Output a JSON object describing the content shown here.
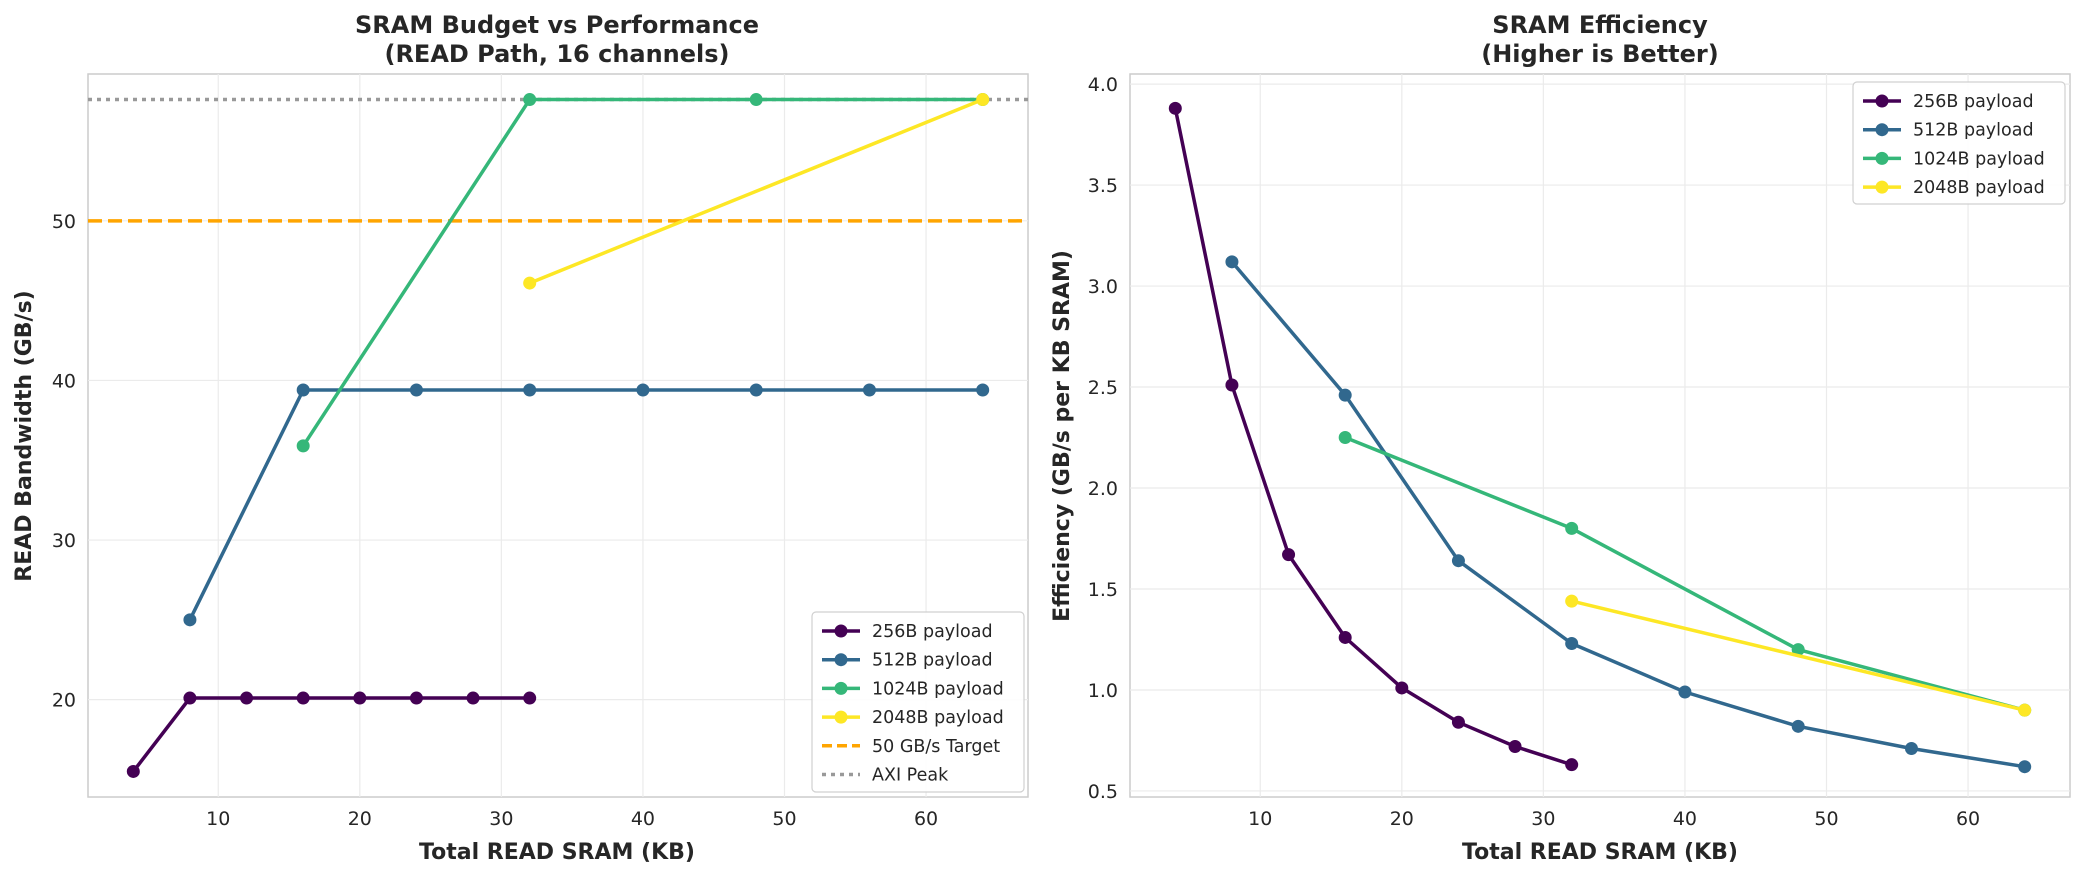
{
  "chart_data": [
    {
      "type": "line",
      "title": [
        "SRAM Budget vs Performance",
        "(READ Path, 16 channels)"
      ],
      "xlabel": "Total READ SRAM (KB)",
      "ylabel": "READ Bandwidth (GB/s)",
      "xlim": [
        0.8,
        67.2
      ],
      "ylim": [
        13.9,
        59.2
      ],
      "xticks": [
        10,
        20,
        30,
        40,
        50,
        60
      ],
      "yticks": [
        20,
        30,
        40,
        50
      ],
      "grid": true,
      "legend_position": "bottom-right",
      "series": [
        {
          "name": "256B payload",
          "color": "#440154",
          "x": [
            4,
            8,
            12,
            16,
            20,
            24,
            28,
            32
          ],
          "y": [
            15.5,
            20.1,
            20.1,
            20.1,
            20.1,
            20.1,
            20.1,
            20.1
          ]
        },
        {
          "name": "512B payload",
          "color": "#31688e",
          "x": [
            8,
            16,
            24,
            32,
            40,
            48,
            56,
            64
          ],
          "y": [
            25.0,
            39.4,
            39.4,
            39.4,
            39.4,
            39.4,
            39.4,
            39.4
          ]
        },
        {
          "name": "1024B payload",
          "color": "#35b779",
          "x": [
            16,
            32,
            48,
            64
          ],
          "y": [
            35.9,
            57.6,
            57.6,
            57.6
          ]
        },
        {
          "name": "2048B payload",
          "color": "#fde725",
          "x": [
            32,
            64
          ],
          "y": [
            46.1,
            57.6
          ]
        }
      ],
      "reference_lines": [
        {
          "name": "50 GB/s Target",
          "y": 50,
          "color": "#ffa500",
          "style": "dashed"
        },
        {
          "name": "AXI Peak",
          "y": 57.6,
          "color": "#999999",
          "style": "dotted"
        }
      ]
    },
    {
      "type": "line",
      "title": [
        "SRAM Efficiency",
        "(Higher is Better)"
      ],
      "xlabel": "Total READ SRAM (KB)",
      "ylabel": "Efficiency (GB/s per KB SRAM)",
      "xlim": [
        0.8,
        67.2
      ],
      "ylim": [
        0.47,
        4.05
      ],
      "xticks": [
        10,
        20,
        30,
        40,
        50,
        60
      ],
      "yticks": [
        0.5,
        1.0,
        1.5,
        2.0,
        2.5,
        3.0,
        3.5,
        4.0
      ],
      "ytick_labels": [
        "0.5",
        "1.0",
        "1.5",
        "2.0",
        "2.5",
        "3.0",
        "3.5",
        "4.0"
      ],
      "grid": true,
      "legend_position": "top-right",
      "series": [
        {
          "name": "256B payload",
          "color": "#440154",
          "x": [
            4,
            8,
            12,
            16,
            20,
            24,
            28,
            32
          ],
          "y": [
            3.88,
            2.51,
            1.67,
            1.26,
            1.01,
            0.84,
            0.72,
            0.63
          ]
        },
        {
          "name": "512B payload",
          "color": "#31688e",
          "x": [
            8,
            16,
            24,
            32,
            40,
            48,
            56,
            64
          ],
          "y": [
            3.12,
            2.46,
            1.64,
            1.23,
            0.99,
            0.82,
            0.71,
            0.62
          ]
        },
        {
          "name": "1024B payload",
          "color": "#35b779",
          "x": [
            16,
            32,
            48,
            64
          ],
          "y": [
            2.25,
            1.8,
            1.2,
            0.9
          ]
        },
        {
          "name": "2048B payload",
          "color": "#fde725",
          "x": [
            32,
            64
          ],
          "y": [
            1.44,
            0.9
          ]
        }
      ]
    }
  ]
}
